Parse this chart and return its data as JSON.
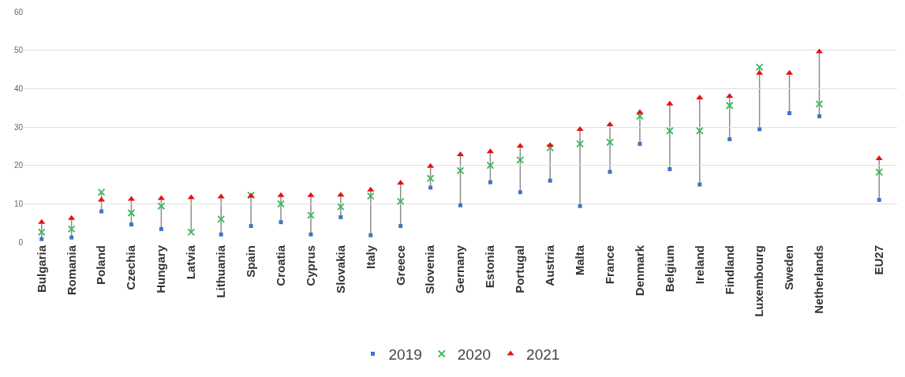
{
  "chart_data": {
    "type": "scatter",
    "categories": [
      "Bulgaria",
      "Romania",
      "Poland",
      "Czechia",
      "Hungary",
      "Latvia",
      "Lithuania",
      "Spain",
      "Croatia",
      "Cyprus",
      "Slovakia",
      "Italy",
      "Greece",
      "Slovenia",
      "Gernany",
      "Estonia",
      "Portugal",
      "Austria",
      "Malta",
      "France",
      "Denmark",
      "Belgium",
      "Ireland",
      "Findland",
      "Luxembourg",
      "Sweden",
      "Netherlands",
      null,
      "EU27"
    ],
    "series": [
      {
        "name": "2019",
        "color": "#4472c4",
        "marker": "square",
        "values": [
          0.8,
          1.2,
          8,
          4.6,
          3.4,
          null,
          2,
          4.2,
          5.2,
          2,
          6.5,
          1.8,
          4.2,
          14.2,
          9.6,
          15.6,
          13,
          16,
          9.4,
          18.3,
          25.6,
          19,
          15,
          26.8,
          29.4,
          33.6,
          32.8,
          null,
          11
        ]
      },
      {
        "name": "2020",
        "color": "#3cb85c",
        "marker": "cross",
        "values": [
          2.6,
          3.4,
          13,
          7.6,
          9.4,
          2.6,
          6,
          12.2,
          10,
          7,
          9.2,
          12,
          10.6,
          16.6,
          18.6,
          20,
          21.4,
          24.6,
          25.6,
          26,
          32.8,
          29,
          29,
          35.6,
          45.6,
          null,
          36,
          null,
          18.2
        ]
      },
      {
        "name": "2021",
        "color": "#e8100e",
        "marker": "triangle",
        "values": [
          5.2,
          6.2,
          11,
          11.2,
          11.4,
          11.6,
          11.8,
          12,
          12.2,
          12.2,
          12.3,
          13.6,
          15.4,
          19.8,
          22.8,
          23.6,
          25,
          25.2,
          29.4,
          30.6,
          33.8,
          36,
          37.6,
          38,
          44,
          44,
          49.6,
          null,
          21.8
        ]
      }
    ],
    "ylim": [
      0,
      60
    ],
    "yticks": [
      0,
      10,
      20,
      30,
      40,
      50,
      60
    ],
    "grid": "y",
    "legend": "bottom"
  }
}
